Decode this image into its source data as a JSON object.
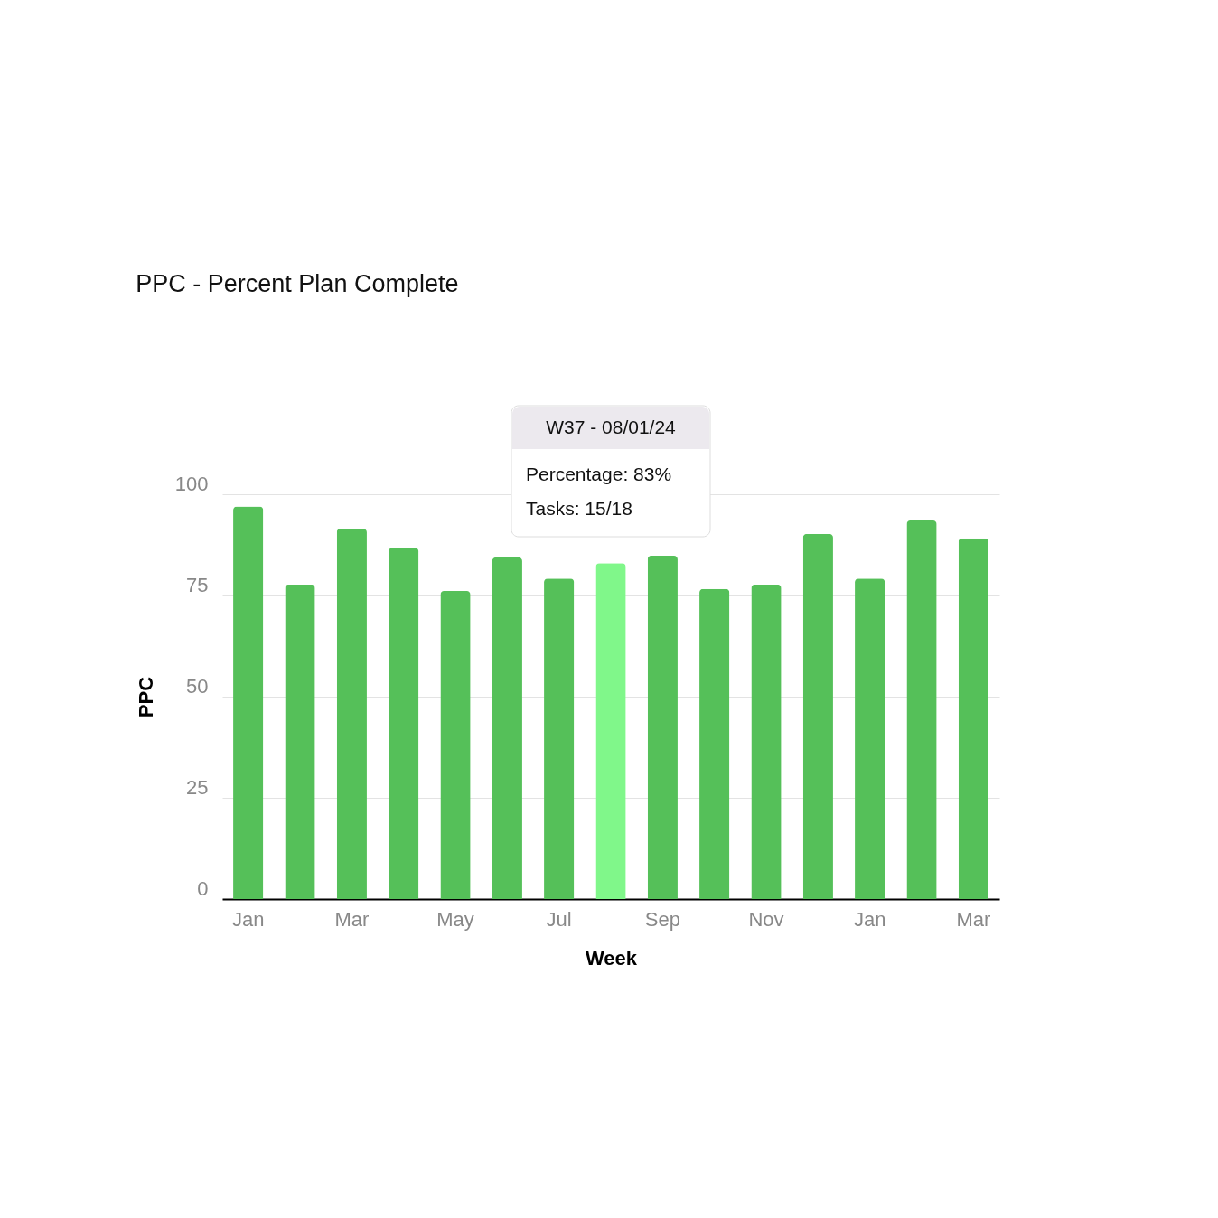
{
  "chart_data": {
    "type": "bar",
    "title": "PPC - Percent Plan Complete",
    "xlabel": "Week",
    "ylabel": "PPC",
    "categories": [
      "Jan",
      null,
      "Mar",
      null,
      "May",
      null,
      "Jul",
      null,
      "Sep",
      null,
      "Nov",
      null,
      "Jan",
      null,
      "Mar"
    ],
    "values": [
      97,
      77.7,
      91.5,
      86.8,
      76.1,
      84.4,
      79.2,
      83,
      84.8,
      76.6,
      77.7,
      90.2,
      79.2,
      93.5,
      89.1
    ],
    "colors": [
      "#55c059",
      "#55c059",
      "#55c059",
      "#55c059",
      "#55c059",
      "#55c059",
      "#55c059",
      "#80f78a",
      "#55c059",
      "#55c059",
      "#55c059",
      "#55c059",
      "#55c059",
      "#55c059",
      "#55c059"
    ],
    "ylim": [
      0,
      100
    ],
    "yticks": [
      0,
      25,
      50,
      75,
      100
    ],
    "grid": "y",
    "annotations": [
      "W37 - 08/01/24",
      "Percentage:  83%",
      "Tasks:  15/18"
    ]
  }
}
